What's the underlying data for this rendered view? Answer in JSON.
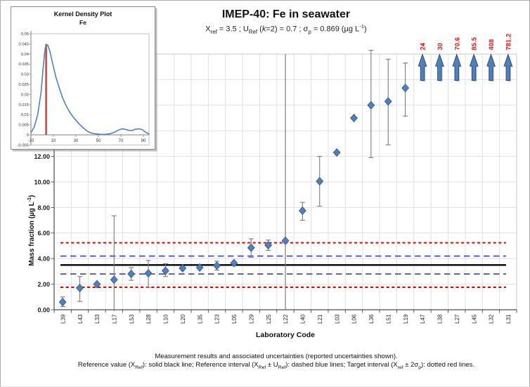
{
  "chart": {
    "title": "IMEP-40: Fe in seawater",
    "subtitle_rich": [
      {
        "t": "X"
      },
      {
        "t": "ref",
        "s": "sub"
      },
      {
        "t": " = 3.5 ; U"
      },
      {
        "t": "Ref",
        "s": "sub"
      },
      {
        "t": " ("
      },
      {
        "t": "k",
        "s": "i"
      },
      {
        "t": "=2) = 0.7 ; σ"
      },
      {
        "t": "p",
        "s": "sub"
      },
      {
        "t": " = 0.869 (µg L"
      },
      {
        "t": "-1",
        "s": "sup"
      },
      {
        "t": ")"
      }
    ],
    "xlabel": "Laboratory Code",
    "ylabel_rich": [
      {
        "t": "Mass fraction (µg L"
      },
      {
        "t": "-1",
        "s": "sup"
      },
      {
        "t": ")"
      }
    ],
    "caption_line1": "Measurement results and associated uncertainties (reported uncertainties shown).",
    "caption_line2_rich": [
      {
        "t": "Reference value (X"
      },
      {
        "t": "Ref",
        "s": "sub"
      },
      {
        "t": "): solid black line; Reference interval (X"
      },
      {
        "t": "Ref",
        "s": "sub"
      },
      {
        "t": " ± U"
      },
      {
        "t": "Ref",
        "s": "sub"
      },
      {
        "t": "): dashed blue lines; Target interval (X"
      },
      {
        "t": "ref",
        "s": "sub"
      },
      {
        "t": " ± 2σ"
      },
      {
        "t": "p",
        "s": "sub"
      },
      {
        "t": "): dotted red lines."
      }
    ]
  },
  "colors": {
    "point": "#4F81BD",
    "point_stroke": "#3A6291",
    "error_bar": "#7A7A7A",
    "reference_line": "#000000",
    "reference_interval": "#3C3CCC",
    "target_interval": "#F00000",
    "offscale_label": "#F01414",
    "gridline": "#E0E0E0",
    "axis": "#4D4D4D",
    "frame": "#C9C9C9",
    "kde_curve": "#4F81BD",
    "kde_marker": "#C0504D"
  },
  "chart_data": [
    {
      "type": "scatter",
      "title": "IMEP-40: Fe in seawater",
      "xlabel": "Laboratory Code",
      "ylabel": "Mass fraction (µg L-1)",
      "ylim": [
        0,
        20
      ],
      "ytick_step": 2,
      "ytick_labels_shown": [
        "0.00",
        "2.00",
        "4.00",
        "6.00",
        "8.00",
        "10.00",
        "12.00"
      ],
      "grid": true,
      "reference_value": 3.5,
      "reference_interval": [
        2.8,
        4.2
      ],
      "target_interval": [
        1.76,
        5.24
      ],
      "categories": [
        "L39",
        "L43",
        "L33",
        "L17",
        "L53",
        "L28",
        "L10",
        "L20",
        "L35",
        "L23",
        "L05",
        "L29",
        "L25",
        "L22",
        "L40",
        "L21",
        "L03",
        "L06",
        "L36",
        "L51",
        "L19",
        "L47",
        "L38",
        "L27",
        "L45",
        "L32",
        "L31"
      ],
      "points": [
        {
          "lab": "L39",
          "value": 0.6,
          "lo": 0.25,
          "hi": 1.0
        },
        {
          "lab": "L43",
          "value": 1.7,
          "lo": 0.65,
          "hi": 2.6
        },
        {
          "lab": "L33",
          "value": 2.0
        },
        {
          "lab": "L17",
          "value": 2.35,
          "lo": -0.1,
          "hi": 7.35,
          "lo_cap": false
        },
        {
          "lab": "L53",
          "value": 2.8,
          "lo": 2.3,
          "hi": 3.3
        },
        {
          "lab": "L28",
          "value": 2.85,
          "lo": 1.75,
          "hi": 3.85
        },
        {
          "lab": "L10",
          "value": 3.05,
          "lo": 2.6,
          "hi": 3.6
        },
        {
          "lab": "L20",
          "value": 3.25
        },
        {
          "lab": "L35",
          "value": 3.3
        },
        {
          "lab": "L23",
          "value": 3.45,
          "lo": 3.1,
          "hi": 3.8
        },
        {
          "lab": "L05",
          "value": 3.65
        },
        {
          "lab": "L29",
          "value": 4.85,
          "lo": 4.1,
          "hi": 5.55
        },
        {
          "lab": "L25",
          "value": 5.05,
          "lo": 4.65,
          "hi": 5.45
        },
        {
          "lab": "L22",
          "value": 5.4,
          "lo": 0,
          "hi": 20,
          "full_line": true,
          "lo_cap": false,
          "hi_cap": false
        },
        {
          "lab": "L40",
          "value": 7.75,
          "lo": 7.0,
          "hi": 8.4
        },
        {
          "lab": "L21",
          "value": 10.05,
          "lo": 8.1,
          "hi": 12.0
        },
        {
          "lab": "L03",
          "value": 12.3
        },
        {
          "lab": "L06",
          "value": 15.0
        },
        {
          "lab": "L36",
          "value": 16.0,
          "lo": 11.9,
          "hi": 20.3
        },
        {
          "lab": "L51",
          "value": 16.3,
          "lo": 12.9,
          "hi": 19.6
        },
        {
          "lab": "L19",
          "value": 17.35,
          "lo": 15.15,
          "hi": 19.3
        }
      ],
      "offscale": [
        {
          "lab": "L47",
          "label": "24"
        },
        {
          "lab": "L38",
          "label": "30"
        },
        {
          "lab": "L27",
          "label": "70.6"
        },
        {
          "lab": "L45",
          "label": "85.5"
        },
        {
          "lab": "L32",
          "label": "408"
        },
        {
          "lab": "L31",
          "label": "781.2"
        }
      ]
    },
    {
      "type": "line",
      "title": "Kernel Density Plot",
      "subtitle": "Fe",
      "xlim": [
        -10,
        95
      ],
      "ylim": [
        -0.005,
        0.05
      ],
      "xticks": [
        -10,
        10,
        30,
        50,
        70,
        90
      ],
      "yticks": [
        -0.005,
        0,
        0.005,
        0.01,
        0.015,
        0.02,
        0.025,
        0.03,
        0.035,
        0.04,
        0.045,
        0.05
      ],
      "reference_line_x": 3.5,
      "series": [
        {
          "name": "Fe kernel density",
          "x": [
            -10,
            -7,
            -4,
            -1,
            1,
            2.5,
            3.5,
            5,
            7,
            9,
            12,
            15,
            18,
            21,
            24,
            27,
            30,
            33,
            36,
            39,
            42,
            45,
            50,
            55,
            60,
            64,
            68,
            71,
            74,
            77,
            80,
            83,
            86,
            89,
            92,
            95
          ],
          "y": [
            0.001,
            0.004,
            0.01,
            0.021,
            0.034,
            0.042,
            0.0448,
            0.0443,
            0.041,
            0.036,
            0.029,
            0.0235,
            0.0185,
            0.0148,
            0.0117,
            0.0092,
            0.0072,
            0.0053,
            0.0037,
            0.0023,
            0.0013,
            0.0007,
            0.0003,
            0.0002,
            0.0005,
            0.0012,
            0.0024,
            0.003,
            0.0027,
            0.0022,
            0.0022,
            0.0028,
            0.003,
            0.0026,
            0.0013,
            0.0005
          ]
        }
      ]
    }
  ]
}
